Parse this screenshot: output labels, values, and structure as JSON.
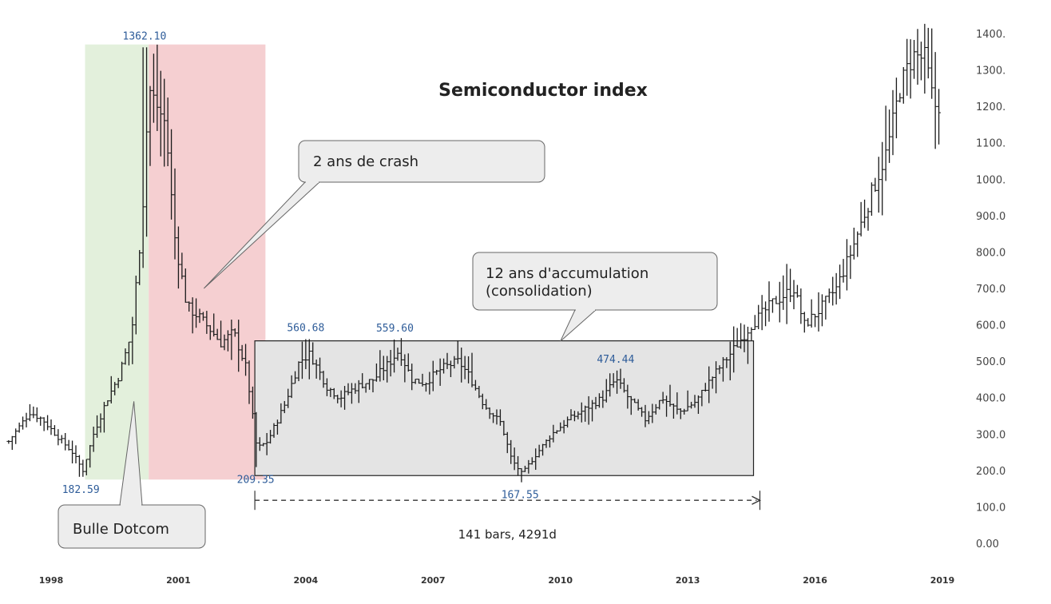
{
  "chart_data": {
    "type": "ohlc",
    "title": "Semiconductor index",
    "frequency": "monthly",
    "x_range": [
      1997.0,
      2019.3
    ],
    "ylim": [
      0,
      1450
    ],
    "y_ticks": [
      "0.00",
      "100.0",
      "200.0",
      "300.0",
      "400.0",
      "500.0",
      "600.0",
      "700.0",
      "800.0",
      "900.0",
      "1000.",
      "1100.",
      "1200.",
      "1300.",
      "1400."
    ],
    "x_ticks": [
      {
        "label": "1998",
        "value": 1998.0
      },
      {
        "label": "2001",
        "value": 2001.0
      },
      {
        "label": "2004",
        "value": 2004.0
      },
      {
        "label": "2007",
        "value": 2007.0
      },
      {
        "label": "2010",
        "value": 2010.0
      },
      {
        "label": "2013",
        "value": 2013.0
      },
      {
        "label": "2016",
        "value": 2016.0
      },
      {
        "label": "2019",
        "value": 2019.0
      }
    ],
    "anchors": [
      [
        1997.0,
        280
      ],
      [
        1997.5,
        360
      ],
      [
        1997.8,
        340
      ],
      [
        1998.1,
        300
      ],
      [
        1998.5,
        250
      ],
      [
        1998.75,
        200
      ],
      [
        1999.0,
        300
      ],
      [
        1999.3,
        390
      ],
      [
        1999.6,
        460
      ],
      [
        1999.9,
        580
      ],
      [
        2000.15,
        900
      ],
      [
        2000.3,
        1250
      ],
      [
        2000.5,
        1200
      ],
      [
        2000.7,
        1150
      ],
      [
        2000.9,
        850
      ],
      [
        2001.2,
        650
      ],
      [
        2001.5,
        620
      ],
      [
        2001.8,
        580
      ],
      [
        2002.0,
        550
      ],
      [
        2002.3,
        580
      ],
      [
        2002.6,
        480
      ],
      [
        2002.85,
        260
      ],
      [
        2003.1,
        280
      ],
      [
        2003.5,
        380
      ],
      [
        2003.85,
        500
      ],
      [
        2004.1,
        520
      ],
      [
        2004.5,
        430
      ],
      [
        2004.8,
        400
      ],
      [
        2005.2,
        430
      ],
      [
        2005.6,
        450
      ],
      [
        2006.0,
        500
      ],
      [
        2006.2,
        530
      ],
      [
        2006.5,
        450
      ],
      [
        2006.8,
        440
      ],
      [
        2007.2,
        480
      ],
      [
        2007.6,
        500
      ],
      [
        2007.85,
        460
      ],
      [
        2008.2,
        380
      ],
      [
        2008.6,
        330
      ],
      [
        2008.85,
        230
      ],
      [
        2009.1,
        190
      ],
      [
        2009.4,
        240
      ],
      [
        2009.8,
        300
      ],
      [
        2010.2,
        340
      ],
      [
        2010.6,
        370
      ],
      [
        2011.0,
        400
      ],
      [
        2011.3,
        450
      ],
      [
        2011.6,
        400
      ],
      [
        2012.0,
        340
      ],
      [
        2012.4,
        400
      ],
      [
        2012.8,
        360
      ],
      [
        2013.2,
        390
      ],
      [
        2013.6,
        460
      ],
      [
        2014.0,
        520
      ],
      [
        2014.5,
        600
      ],
      [
        2015.0,
        660
      ],
      [
        2015.5,
        700
      ],
      [
        2015.75,
        600
      ],
      [
        2016.1,
        640
      ],
      [
        2016.5,
        700
      ],
      [
        2016.85,
        800
      ],
      [
        2017.3,
        950
      ],
      [
        2017.7,
        1080
      ],
      [
        2018.0,
        1250
      ],
      [
        2018.3,
        1340
      ],
      [
        2018.6,
        1330
      ],
      [
        2018.8,
        1200
      ],
      [
        2018.95,
        1210
      ]
    ],
    "price_labels": [
      {
        "text": "1362.10",
        "x": 2000.2,
        "y": 1362.1,
        "pos": "above"
      },
      {
        "text": "182.59",
        "x": 1998.7,
        "y": 182.59,
        "pos": "below"
      },
      {
        "text": "209.35",
        "x": 2002.82,
        "y": 209.35,
        "pos": "below"
      },
      {
        "text": "560.68",
        "x": 2004.0,
        "y": 560.68,
        "pos": "above"
      },
      {
        "text": "559.60",
        "x": 2006.1,
        "y": 559.6,
        "pos": "above"
      },
      {
        "text": "474.44",
        "x": 2011.3,
        "y": 474.44,
        "pos": "above"
      },
      {
        "text": "167.55",
        "x": 2009.05,
        "y": 167.55,
        "pos": "below"
      }
    ],
    "zones": [
      {
        "name": "bubble-zone",
        "from_x": 1998.8,
        "to_x": 2000.3,
        "from_y": 175,
        "to_y": 1370,
        "color": "#e3f0dc"
      },
      {
        "name": "crash-zone",
        "from_x": 2000.3,
        "to_x": 2003.05,
        "from_y": 175,
        "to_y": 1370,
        "color": "#f5cfd1"
      }
    ],
    "range_box": {
      "from_x": 2002.8,
      "to_x": 2014.55,
      "from_y": 186,
      "to_y": 556,
      "fill": "#e4e4e4"
    },
    "callouts": [
      {
        "name": "callout-dotcom",
        "text": [
          "Bulle Dotcom"
        ],
        "tip_x": 1999.95,
        "tip_y": 390
      },
      {
        "name": "callout-crash",
        "text": [
          "2 ans de crash"
        ],
        "tip_x": 2001.6,
        "tip_y": 700
      },
      {
        "name": "callout-accumulation",
        "text": [
          "12 ans d'accumulation",
          "(consolidation)"
        ],
        "tip_x": 2010.0,
        "tip_y": 555
      }
    ],
    "measure": {
      "from_x": 2002.8,
      "to_x": 2014.7,
      "y": 118,
      "text": "141 bars, 4291d"
    },
    "colors": {
      "bars": "#1a1a1a",
      "price_label": "#2e5c99"
    }
  }
}
